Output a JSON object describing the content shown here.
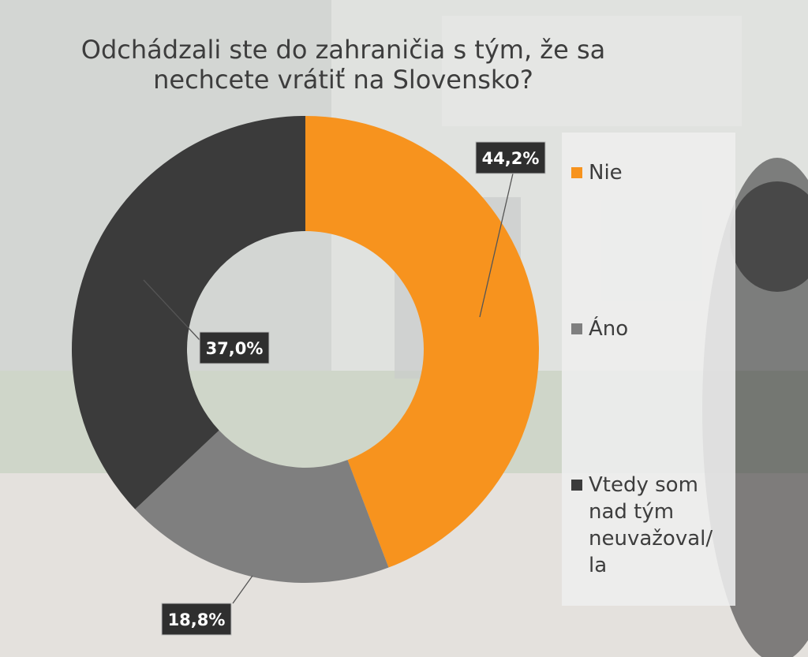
{
  "chart_data": {
    "type": "pie",
    "variant": "donut",
    "title": "Odchádzali ste do zahraničia s tým,  že sa nechcete vrátiť na Slovensko?",
    "title_lines": [
      "Odchádzali ste do zahraničia s tým,  že sa",
      "nechcete vrátiť na Slovensko?"
    ],
    "legend_position": "right",
    "slices": [
      {
        "label": "Nie",
        "value": 44.2,
        "display": "44,2%",
        "color": "#f7931e"
      },
      {
        "label": "Áno",
        "value": 18.8,
        "display": "18,8%",
        "color": "#7f7f7f"
      },
      {
        "label": "Vtedy som nad tým neuvažoval/ la",
        "value": 37.0,
        "display": "37,0%",
        "color": "#3b3b3b"
      }
    ],
    "legend_lines": [
      [
        "Nie"
      ],
      [
        "Áno"
      ],
      [
        "Vtedy som",
        "nad tým",
        "neuvažoval/",
        "la"
      ]
    ]
  }
}
